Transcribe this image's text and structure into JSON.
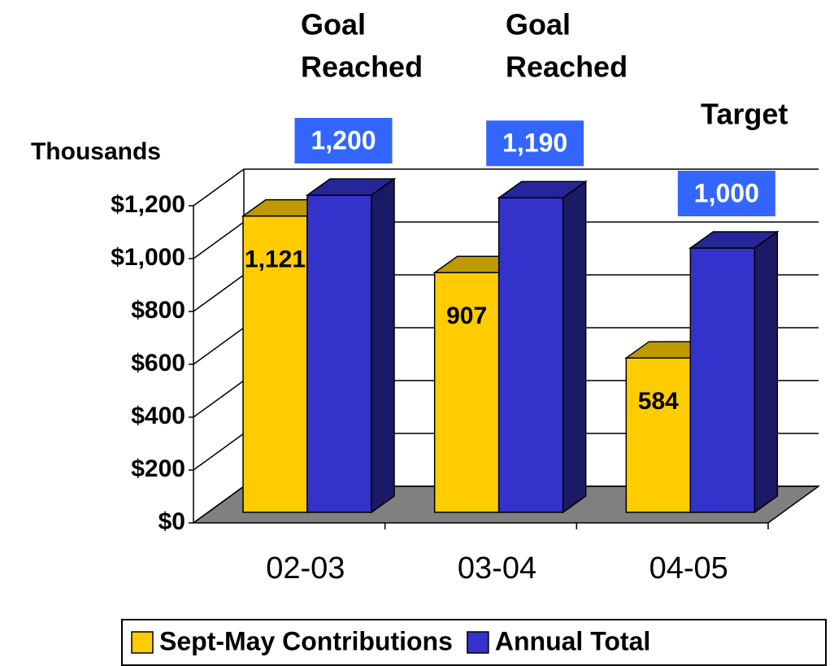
{
  "chart_data": {
    "type": "bar3d",
    "y_axis_label": "Thousands",
    "categories": [
      "02-03",
      "03-04",
      "04-05"
    ],
    "series": [
      {
        "name": "Sept-May Contributions",
        "color": "#ffcc00",
        "values": [
          1121,
          907,
          584
        ],
        "value_labels": [
          "1,121",
          "907",
          "584"
        ]
      },
      {
        "name": "Annual Total",
        "color": "#3333cc",
        "values": [
          1200,
          1190,
          1000
        ],
        "value_labels": [
          "1,200",
          "1,190",
          "1,000"
        ]
      }
    ],
    "ylim": [
      0,
      1200
    ],
    "yticks": [
      {
        "value": 0,
        "label": "$0"
      },
      {
        "value": 200,
        "label": "$200"
      },
      {
        "value": 400,
        "label": "$400"
      },
      {
        "value": 600,
        "label": "$600"
      },
      {
        "value": 800,
        "label": "$800"
      },
      {
        "value": 1000,
        "label": "$1,000"
      },
      {
        "value": 1200,
        "label": "$1,200"
      }
    ],
    "annotations": [
      [
        "Goal",
        "Reached"
      ],
      [
        "Goal",
        "Reached"
      ],
      [
        "Target"
      ]
    ],
    "floor_color": "#808080",
    "label_box_color": "#3366ff",
    "grid": true
  }
}
